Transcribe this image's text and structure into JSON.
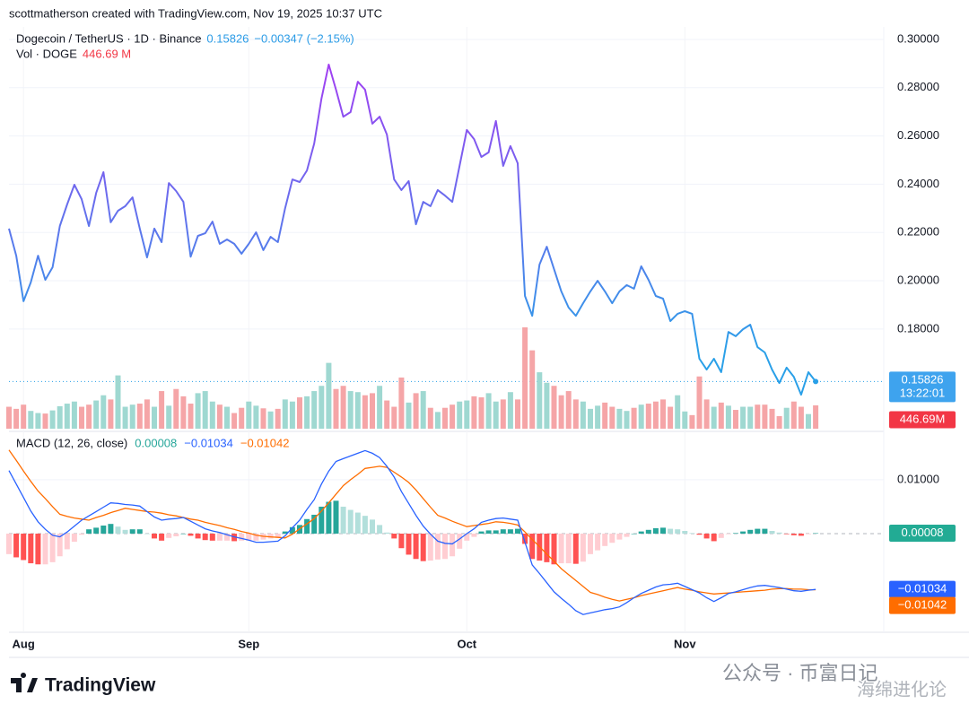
{
  "header": {
    "attribution": "scottmatherson created with TradingView.com, Nov 19, 2025 10:37 UTC",
    "logo": "TradingView",
    "watermark": "公众号 · 币富日记",
    "watermark2": "海绵进化论"
  },
  "chart_data": [
    {
      "type": "line",
      "title": "Dogecoin / TetherUS · 1D · Binance",
      "categories": [
        null,
        null,
        "Aug",
        null,
        null,
        null,
        null,
        null,
        null,
        null,
        null,
        null,
        null,
        null,
        null,
        null,
        null,
        null,
        null,
        null,
        null,
        null,
        null,
        null,
        null,
        null,
        null,
        null,
        null,
        null,
        null,
        null,
        null,
        "Sep",
        null,
        null,
        null,
        null,
        null,
        null,
        null,
        null,
        null,
        null,
        null,
        null,
        null,
        null,
        null,
        null,
        null,
        null,
        null,
        null,
        null,
        null,
        null,
        null,
        null,
        null,
        null,
        null,
        null,
        "Oct",
        null,
        null,
        null,
        null,
        null,
        null,
        null,
        null,
        null,
        null,
        null,
        null,
        null,
        null,
        null,
        null,
        null,
        null,
        null,
        null,
        null,
        null,
        null,
        null,
        null,
        null,
        null,
        null,
        null,
        "Nov",
        null,
        null,
        null,
        null,
        null,
        null,
        null,
        null,
        null,
        null,
        null,
        null,
        null,
        null,
        null,
        null,
        null,
        null
      ],
      "values": [
        0.2216,
        0.2104,
        0.1915,
        0.1993,
        0.2104,
        0.2004,
        0.2056,
        0.2227,
        0.2316,
        0.2398,
        0.2338,
        0.2227,
        0.2364,
        0.245,
        0.2242,
        0.229,
        0.2309,
        0.2346,
        0.2216,
        0.2097,
        0.2216,
        0.216,
        0.2405,
        0.2372,
        0.2327,
        0.21,
        0.2186,
        0.2197,
        0.2245,
        0.2153,
        0.2171,
        0.2153,
        0.2112,
        0.2153,
        0.2201,
        0.2127,
        0.2182,
        0.216,
        0.2301,
        0.242,
        0.2409,
        0.2457,
        0.2569,
        0.2755,
        0.2896,
        0.2792,
        0.268,
        0.2699,
        0.2825,
        0.2792,
        0.2651,
        0.268,
        0.2606,
        0.242,
        0.2376,
        0.2413,
        0.2234,
        0.2327,
        0.2309,
        0.2376,
        0.2353,
        0.2327,
        0.2476,
        0.2625,
        0.2587,
        0.2513,
        0.2532,
        0.2662,
        0.2476,
        0.2558,
        0.2487,
        0.1937,
        0.1855,
        0.2067,
        0.2141,
        0.2048,
        0.1956,
        0.1889,
        0.1855,
        0.1907,
        0.1956,
        0.2,
        0.1956,
        0.1907,
        0.1956,
        0.1982,
        0.1967,
        0.206,
        0.2004,
        0.1937,
        0.1926,
        0.1833,
        0.1863,
        0.1874,
        0.1863,
        0.1677,
        0.1632,
        0.1677,
        0.1621,
        0.1788,
        0.177,
        0.1799,
        0.1818,
        0.1725,
        0.1703,
        0.1632,
        0.1576,
        0.164,
        0.1602,
        0.1528,
        0.1621,
        0.15826
      ],
      "change_label": "−0.00347 (−2.15%)",
      "countdown": "13:22:01",
      "line_colors": [
        "#a23ef2",
        "#2aa0e8"
      ],
      "ylim": [
        0.1387,
        0.3052
      ],
      "yticks": [
        {
          "value": 0.18,
          "label": "0.18000"
        },
        {
          "value": 0.2,
          "label": "0.20000"
        },
        {
          "value": 0.22,
          "label": "0.22000"
        },
        {
          "value": 0.24,
          "label": "0.24000"
        },
        {
          "value": 0.26,
          "label": "0.26000"
        },
        {
          "value": 0.28,
          "label": "0.28000"
        },
        {
          "value": 0.3,
          "label": "0.30000"
        }
      ],
      "grid": true
    },
    {
      "type": "volume",
      "title": "Vol · DOGE",
      "values": [
        420,
        380,
        460,
        340,
        300,
        290,
        350,
        430,
        480,
        520,
        420,
        460,
        540,
        640,
        560,
        1020,
        420,
        460,
        480,
        560,
        420,
        720,
        440,
        760,
        620,
        480,
        680,
        720,
        520,
        460,
        420,
        300,
        400,
        520,
        440,
        390,
        330,
        380,
        560,
        520,
        600,
        620,
        720,
        820,
        1260,
        760,
        820,
        720,
        700,
        640,
        680,
        820,
        540,
        420,
        980,
        500,
        680,
        720,
        400,
        320,
        400,
        460,
        520,
        540,
        620,
        600,
        680,
        520,
        560,
        700,
        560,
        1940,
        1500,
        1080,
        880,
        820,
        640,
        720,
        560,
        520,
        380,
        440,
        500,
        420,
        380,
        340,
        400,
        460,
        480,
        520,
        560,
        420,
        640,
        330,
        260,
        1000,
        560,
        420,
        500,
        440,
        360,
        420,
        420,
        460,
        460,
        380,
        240,
        400,
        520,
        420,
        280,
        446.69
      ],
      "legend_value_label": "446.69 M",
      "badge_label": "446.69M",
      "up_color": "#9fd8d1",
      "down_color": "#f5a5a7",
      "badge_color": "#f23645"
    },
    {
      "type": "macd",
      "title": "MACD (12, 26, close)",
      "histogram": {
        "values": [
          -0.0038,
          -0.0044,
          -0.0049,
          -0.0055,
          -0.0057,
          -0.0057,
          -0.0053,
          -0.0042,
          -0.0029,
          -0.0015,
          -0.0002,
          0.0008,
          0.0011,
          0.0015,
          0.0018,
          0.0013,
          0.0007,
          0.0008,
          0.0008,
          0,
          -0.0009,
          -0.0013,
          -0.0008,
          -0.0005,
          0,
          -0.0004,
          -0.0009,
          -0.0012,
          -0.0013,
          -0.0013,
          -0.0013,
          -0.0014,
          -0.0013,
          -0.0013,
          -0.0013,
          -0.0011,
          -0.0009,
          -0.0007,
          0.0004,
          0.0012,
          0.0016,
          0.0027,
          0.0035,
          0.005,
          0.0059,
          0.0061,
          0.005,
          0.0044,
          0.0039,
          0.0033,
          0.0026,
          0.0016,
          0.0002,
          -0.0009,
          -0.0027,
          -0.0039,
          -0.0047,
          -0.0051,
          -0.005,
          -0.0048,
          -0.0047,
          -0.0042,
          -0.0028,
          -0.0013,
          -0.0006,
          0.0004,
          0.0006,
          0.0006,
          0.0008,
          0.0008,
          0.0009,
          -0.0019,
          -0.0047,
          -0.005,
          -0.0053,
          -0.0057,
          -0.0055,
          -0.0055,
          -0.0056,
          -0.0052,
          -0.0038,
          -0.0031,
          -0.0023,
          -0.0017,
          -0.0011,
          -0.0006,
          0,
          0.0004,
          0.0007,
          0.001,
          0.0011,
          0.0009,
          0.0008,
          0.0005,
          0.0001,
          -0.0002,
          -0.0009,
          -0.0014,
          -0.0008,
          -0.0001,
          0.0001,
          0.0004,
          0.0007,
          0.0009,
          0.0009,
          0.0005,
          0.0002,
          -0.0001,
          -0.0003,
          -0.0004,
          -0.0001,
          8e-05
        ],
        "colors": [
          "#26a69a",
          "#b2dfdb",
          "#ff5252",
          "#ffcdd2"
        ],
        "badge_color": "#22ab94"
      },
      "macd": {
        "values": [
          0.0117,
          0.0092,
          0.0067,
          0.0042,
          0.0022,
          0.0008,
          -0.0003,
          -0.0006,
          0.0003,
          0.0014,
          0.0025,
          0.0033,
          0.0041,
          0.0049,
          0.0057,
          0.0056,
          0.0054,
          0.0053,
          0.0051,
          0.0041,
          0.0031,
          0.0025,
          0.0027,
          0.0028,
          0.003,
          0.0023,
          0.0016,
          0.0009,
          0.0005,
          0.0002,
          -0.0002,
          -0.0006,
          -0.0009,
          -0.0012,
          -0.0016,
          -0.0016,
          -0.0015,
          -0.0014,
          -0.0004,
          0.0011,
          0.0025,
          0.0045,
          0.0063,
          0.0092,
          0.0116,
          0.0134,
          0.0139,
          0.0144,
          0.0149,
          0.0154,
          0.0149,
          0.0141,
          0.0125,
          0.0105,
          0.0078,
          0.0056,
          0.0034,
          0.0014,
          -0.0001,
          -0.0014,
          -0.0018,
          -0.0019,
          -0.001,
          0,
          0.0009,
          0.0021,
          0.0025,
          0.0028,
          0.0029,
          0.0027,
          0.0025,
          -0.0016,
          -0.0058,
          -0.0074,
          -0.0091,
          -0.0108,
          -0.012,
          -0.0131,
          -0.0143,
          -0.015,
          -0.0147,
          -0.0144,
          -0.0141,
          -0.0139,
          -0.0136,
          -0.0128,
          -0.0119,
          -0.0111,
          -0.0105,
          -0.0099,
          -0.0095,
          -0.0094,
          -0.0092,
          -0.0098,
          -0.0104,
          -0.011,
          -0.0119,
          -0.0126,
          -0.0119,
          -0.0111,
          -0.0108,
          -0.0104,
          -0.01,
          -0.0097,
          -0.0096,
          -0.0098,
          -0.01,
          -0.0103,
          -0.0106,
          -0.0107,
          -0.0105,
          -0.01034
        ],
        "color": "#2962ff",
        "value_label": "−0.01034"
      },
      "signal": {
        "values": [
          0.0155,
          0.0136,
          0.0116,
          0.0097,
          0.0079,
          0.0065,
          0.005,
          0.0036,
          0.0032,
          0.0029,
          0.0027,
          0.0025,
          0.003,
          0.0034,
          0.0039,
          0.0043,
          0.0047,
          0.0045,
          0.0043,
          0.0041,
          0.004,
          0.0038,
          0.0035,
          0.0033,
          0.003,
          0.0027,
          0.0025,
          0.0021,
          0.0018,
          0.0015,
          0.0011,
          0.0008,
          0.0004,
          0.0001,
          -0.0003,
          -0.0005,
          -0.0006,
          -0.0007,
          -0.0008,
          -0.0001,
          0.0009,
          0.0018,
          0.0028,
          0.0042,
          0.0057,
          0.0073,
          0.0089,
          0.01,
          0.011,
          0.0121,
          0.0123,
          0.0125,
          0.0123,
          0.0114,
          0.0105,
          0.0095,
          0.0081,
          0.0065,
          0.0049,
          0.0034,
          0.0029,
          0.0023,
          0.0018,
          0.0013,
          0.0015,
          0.0017,
          0.0019,
          0.0022,
          0.0021,
          0.0019,
          0.0016,
          0.0003,
          -0.0011,
          -0.0024,
          -0.0038,
          -0.0051,
          -0.0065,
          -0.0076,
          -0.0087,
          -0.0098,
          -0.0109,
          -0.0113,
          -0.0118,
          -0.0122,
          -0.0125,
          -0.0122,
          -0.0119,
          -0.0115,
          -0.0112,
          -0.0109,
          -0.0106,
          -0.0103,
          -0.01,
          -0.0103,
          -0.0105,
          -0.0108,
          -0.011,
          -0.0112,
          -0.0111,
          -0.011,
          -0.0109,
          -0.0108,
          -0.0107,
          -0.0106,
          -0.0105,
          -0.0103,
          -0.0102,
          -0.0102,
          -0.0103,
          -0.0103,
          -0.0104,
          -0.01042
        ],
        "color": "#ff6d00",
        "value_label": "−0.01042"
      },
      "ylim": [
        -0.0183,
        0.0183
      ],
      "yticks": [
        {
          "value": 0.01,
          "label": "0.01000"
        }
      ],
      "grid": true
    }
  ]
}
